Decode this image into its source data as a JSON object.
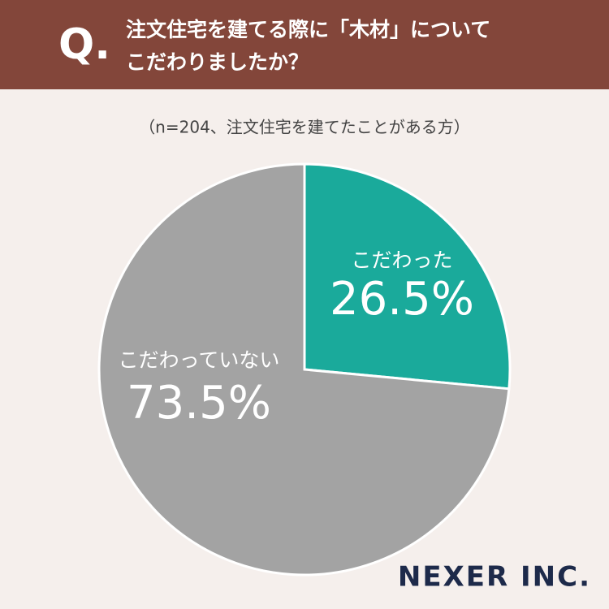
{
  "chart_data": {
    "type": "pie",
    "question_mark": "Q.",
    "title": [
      "注文住宅を建てる際に「木材」について",
      "こだわりましたか？"
    ],
    "subtitle": "（n=204、注文住宅を建てたことがある方）",
    "categories": [
      "こだわった",
      "こだわっていない"
    ],
    "values": [
      26.5,
      73.5
    ],
    "value_labels": [
      "26.5%",
      "73.5%"
    ],
    "colors": [
      "#1aaa9b",
      "#a3a3a3"
    ],
    "brand": "NEXER INC."
  }
}
